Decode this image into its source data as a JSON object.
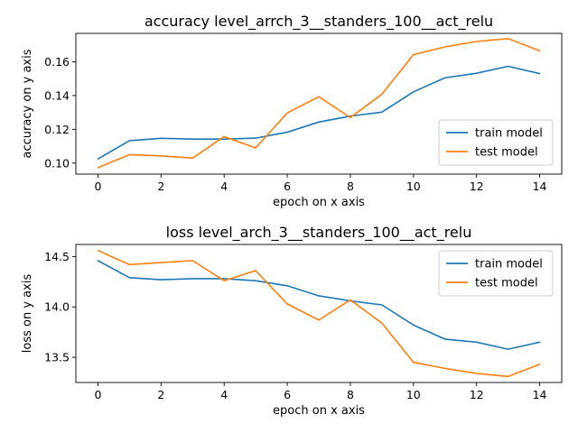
{
  "chart_data": [
    {
      "type": "line",
      "title": "accuracy level_arrch_3__standers_100__act_relu",
      "xlabel": "epoch on x axis",
      "ylabel": "accuracy on y axis",
      "x": [
        0,
        1,
        2,
        3,
        4,
        5,
        6,
        7,
        8,
        9,
        10,
        11,
        12,
        13,
        14
      ],
      "xlim": [
        -0.7,
        14.7
      ],
      "ylim": [
        0.0935,
        0.1768
      ],
      "xticks": [
        0,
        2,
        4,
        6,
        8,
        10,
        12,
        14
      ],
      "xtick_labels": [
        "0",
        "2",
        "4",
        "6",
        "8",
        "10",
        "12",
        "14"
      ],
      "yticks": [
        0.1,
        0.12,
        0.14,
        0.16
      ],
      "ytick_labels": [
        "0.10",
        "0.12",
        "0.14",
        "0.16"
      ],
      "grid": false,
      "legend_position": "lower right",
      "series": [
        {
          "name": "train model",
          "color": "#1f77b4",
          "values": [
            0.1025,
            0.1133,
            0.1147,
            0.1142,
            0.1142,
            0.1148,
            0.1183,
            0.1243,
            0.1278,
            0.1302,
            0.1422,
            0.1505,
            0.1532,
            0.1573,
            0.153
          ]
        },
        {
          "name": "test model",
          "color": "#ff7f0e",
          "values": [
            0.0973,
            0.105,
            0.1043,
            0.103,
            0.1157,
            0.109,
            0.1297,
            0.1393,
            0.127,
            0.1408,
            0.1642,
            0.1688,
            0.172,
            0.1737,
            0.1665
          ]
        }
      ]
    },
    {
      "type": "line",
      "title": "loss level_arch_3__standers_100__act_relu",
      "xlabel": "epoch on x axis",
      "ylabel": "loss on y axis",
      "x": [
        0,
        1,
        2,
        3,
        4,
        5,
        6,
        7,
        8,
        9,
        10,
        11,
        12,
        13,
        14
      ],
      "xlim": [
        -0.7,
        14.7
      ],
      "ylim": [
        13.25,
        14.62
      ],
      "xticks": [
        0,
        2,
        4,
        6,
        8,
        10,
        12,
        14
      ],
      "xtick_labels": [
        "0",
        "2",
        "4",
        "6",
        "8",
        "10",
        "12",
        "14"
      ],
      "yticks": [
        13.5,
        14.0,
        14.5
      ],
      "ytick_labels": [
        "13.5",
        "14.0",
        "14.5"
      ],
      "grid": false,
      "legend_position": "upper right",
      "series": [
        {
          "name": "train model",
          "color": "#1f77b4",
          "values": [
            14.46,
            14.29,
            14.27,
            14.28,
            14.28,
            14.26,
            14.21,
            14.11,
            14.06,
            14.02,
            13.82,
            13.68,
            13.65,
            13.58,
            13.65
          ]
        },
        {
          "name": "test model",
          "color": "#ff7f0e",
          "values": [
            14.56,
            14.42,
            14.44,
            14.46,
            14.26,
            14.36,
            14.03,
            13.87,
            14.07,
            13.84,
            13.45,
            13.39,
            13.34,
            13.31,
            13.43
          ]
        }
      ]
    }
  ]
}
